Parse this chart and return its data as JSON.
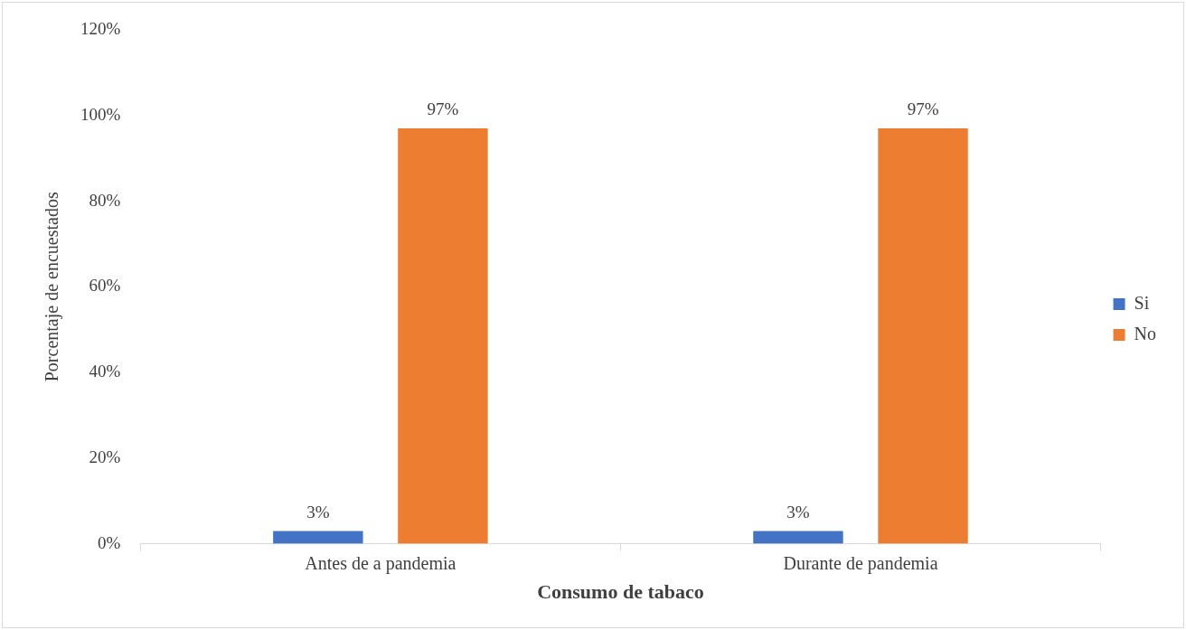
{
  "chart_data": {
    "type": "bar",
    "xlabel": "Consumo de tabaco",
    "ylabel": "Porcentaje de encuestados",
    "categories": [
      "Antes de a pandemia",
      "Durante de pandemia"
    ],
    "series": [
      {
        "name": "Si",
        "color": "#4472c4",
        "values": [
          3,
          3
        ],
        "value_labels": [
          "3%",
          "3%"
        ]
      },
      {
        "name": "No",
        "color": "#ed7d31",
        "values": [
          97,
          97
        ],
        "value_labels": [
          "97%",
          "97%"
        ]
      }
    ],
    "ylim": [
      0,
      120
    ],
    "yticks": [
      {
        "value": 0,
        "label": "0%"
      },
      {
        "value": 20,
        "label": "20%"
      },
      {
        "value": 40,
        "label": "40%"
      },
      {
        "value": 60,
        "label": "60%"
      },
      {
        "value": 80,
        "label": "80%"
      },
      {
        "value": 100,
        "label": "100%"
      },
      {
        "value": 120,
        "label": "120%"
      }
    ],
    "grid": false,
    "legend": "right"
  }
}
